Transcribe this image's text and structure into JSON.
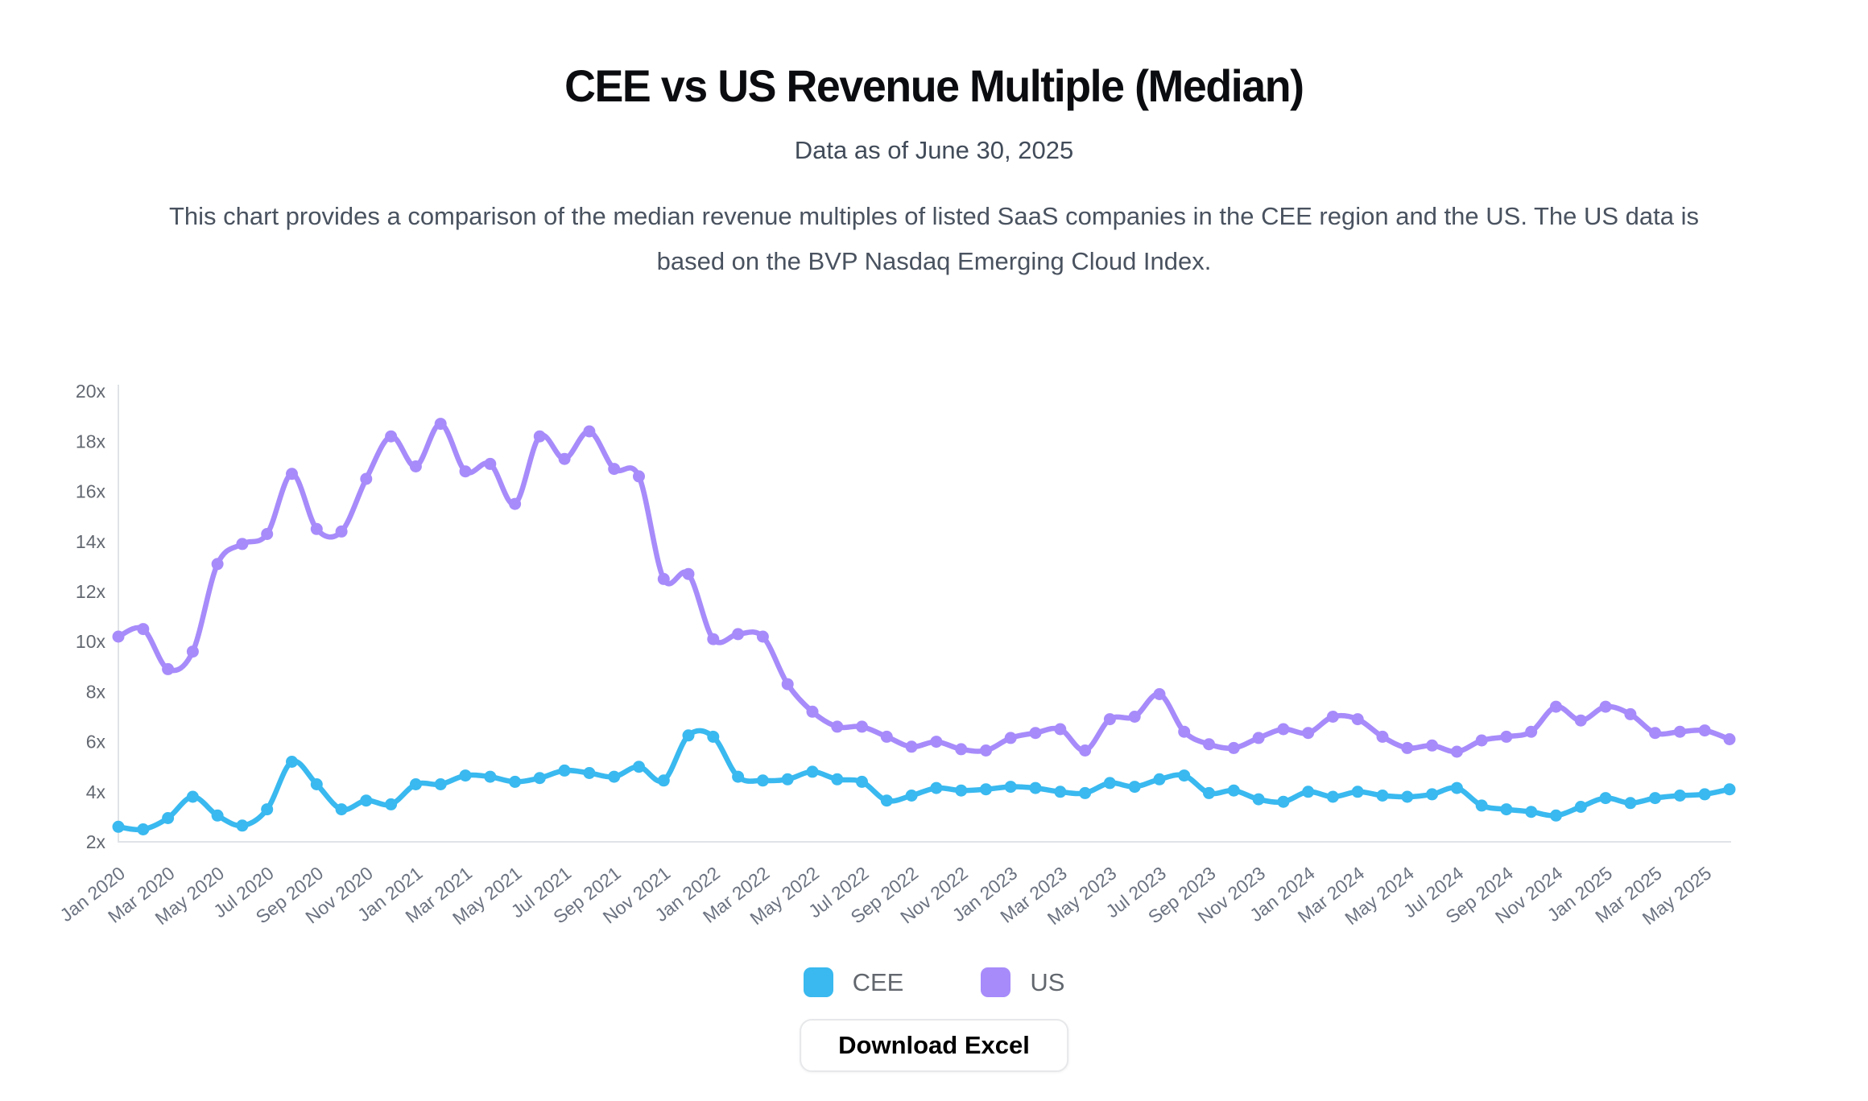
{
  "header": {
    "title": "CEE vs US Revenue Multiple (Median)",
    "subtitle": "Data as of June 30, 2025",
    "description": "This chart provides a comparison of the median revenue multiples of listed SaaS companies in the CEE region and the US. The US data is based on the BVP Nasdaq Emerging Cloud Index."
  },
  "legend": {
    "items": [
      {
        "label": "CEE",
        "color": "#39b9ef"
      },
      {
        "label": "US",
        "color": "#a78bfa"
      }
    ]
  },
  "download_button": {
    "label": "Download Excel"
  },
  "chart_data": {
    "type": "line",
    "title": "CEE vs US Revenue Multiple (Median)",
    "xlabel": "",
    "ylabel": "",
    "ylim": [
      2,
      20
    ],
    "y_tick_step": 2,
    "y_tick_suffix": "x",
    "grid": false,
    "legend_position": "bottom",
    "x_tick_every": 2,
    "x": [
      "Jan 2020",
      "Feb 2020",
      "Mar 2020",
      "Apr 2020",
      "May 2020",
      "Jun 2020",
      "Jul 2020",
      "Aug 2020",
      "Sep 2020",
      "Oct 2020",
      "Nov 2020",
      "Dec 2020",
      "Jan 2021",
      "Feb 2021",
      "Mar 2021",
      "Apr 2021",
      "May 2021",
      "Jun 2021",
      "Jul 2021",
      "Aug 2021",
      "Sep 2021",
      "Oct 2021",
      "Nov 2021",
      "Dec 2021",
      "Jan 2022",
      "Feb 2022",
      "Mar 2022",
      "Apr 2022",
      "May 2022",
      "Jun 2022",
      "Jul 2022",
      "Aug 2022",
      "Sep 2022",
      "Oct 2022",
      "Nov 2022",
      "Dec 2022",
      "Jan 2023",
      "Feb 2023",
      "Mar 2023",
      "Apr 2023",
      "May 2023",
      "Jun 2023",
      "Jul 2023",
      "Aug 2023",
      "Sep 2023",
      "Oct 2023",
      "Nov 2023",
      "Dec 2023",
      "Jan 2024",
      "Feb 2024",
      "Mar 2024",
      "Apr 2024",
      "May 2024",
      "Jun 2024",
      "Jul 2024",
      "Aug 2024",
      "Sep 2024",
      "Oct 2024",
      "Nov 2024",
      "Dec 2024",
      "Jan 2025",
      "Feb 2025",
      "Mar 2025",
      "Apr 2025",
      "May 2025",
      "Jun 2025"
    ],
    "x_ticks": [
      "Jan 2020",
      "Mar 2020",
      "May 2020",
      "Jul 2020",
      "Sep 2020",
      "Nov 2020",
      "Jan 2021",
      "Mar 2021",
      "May 2021",
      "Jul 2021",
      "Sep 2021",
      "Nov 2021",
      "Jan 2022",
      "Mar 2022",
      "May 2022",
      "Jul 2022",
      "Sep 2022",
      "Nov 2022",
      "Jan 2023",
      "Mar 2023",
      "May 2023",
      "Jul 2023",
      "Sep 2023",
      "Nov 2023",
      "Jan 2024",
      "Mar 2024",
      "May 2024",
      "Jul 2024",
      "Sep 2024",
      "Nov 2024",
      "Jan 2025",
      "Mar 2025",
      "May 2025"
    ],
    "y_ticks": [
      "2x",
      "4x",
      "6x",
      "8x",
      "10x",
      "12x",
      "14x",
      "16x",
      "18x",
      "20x"
    ],
    "series": [
      {
        "name": "CEE",
        "color": "#39b9ef",
        "values": [
          2.6,
          2.5,
          2.95,
          3.8,
          3.05,
          2.65,
          3.3,
          5.2,
          4.3,
          3.3,
          3.65,
          3.5,
          4.3,
          4.3,
          4.65,
          4.6,
          4.4,
          4.55,
          4.85,
          4.75,
          4.6,
          5.0,
          4.45,
          6.25,
          6.2,
          4.6,
          4.45,
          4.5,
          4.8,
          4.5,
          4.4,
          3.65,
          3.85,
          4.15,
          4.05,
          4.1,
          4.2,
          4.15,
          4.0,
          3.95,
          4.35,
          4.2,
          4.5,
          4.65,
          3.95,
          4.05,
          3.7,
          3.6,
          4.0,
          3.8,
          4.0,
          3.85,
          3.8,
          3.9,
          4.15,
          3.45,
          3.3,
          3.2,
          3.05,
          3.4,
          3.75,
          3.55,
          3.75,
          3.85,
          3.9,
          4.1
        ]
      },
      {
        "name": "US",
        "color": "#a78bfa",
        "values": [
          10.2,
          10.5,
          8.9,
          9.6,
          13.1,
          13.9,
          14.3,
          16.7,
          14.5,
          14.4,
          16.5,
          18.2,
          17.0,
          18.7,
          16.8,
          17.1,
          15.5,
          18.2,
          17.3,
          18.4,
          16.9,
          16.6,
          12.5,
          12.7,
          10.1,
          10.3,
          10.2,
          8.3,
          7.2,
          6.6,
          6.6,
          6.2,
          5.8,
          6.0,
          5.7,
          5.65,
          6.15,
          6.35,
          6.5,
          5.65,
          6.9,
          7.0,
          7.9,
          6.4,
          5.9,
          5.75,
          6.15,
          6.5,
          6.35,
          7.0,
          6.9,
          6.2,
          5.75,
          5.85,
          5.6,
          6.05,
          6.2,
          6.4,
          7.4,
          6.85,
          7.4,
          7.1,
          6.35,
          6.4,
          6.45,
          6.1
        ]
      }
    ]
  }
}
